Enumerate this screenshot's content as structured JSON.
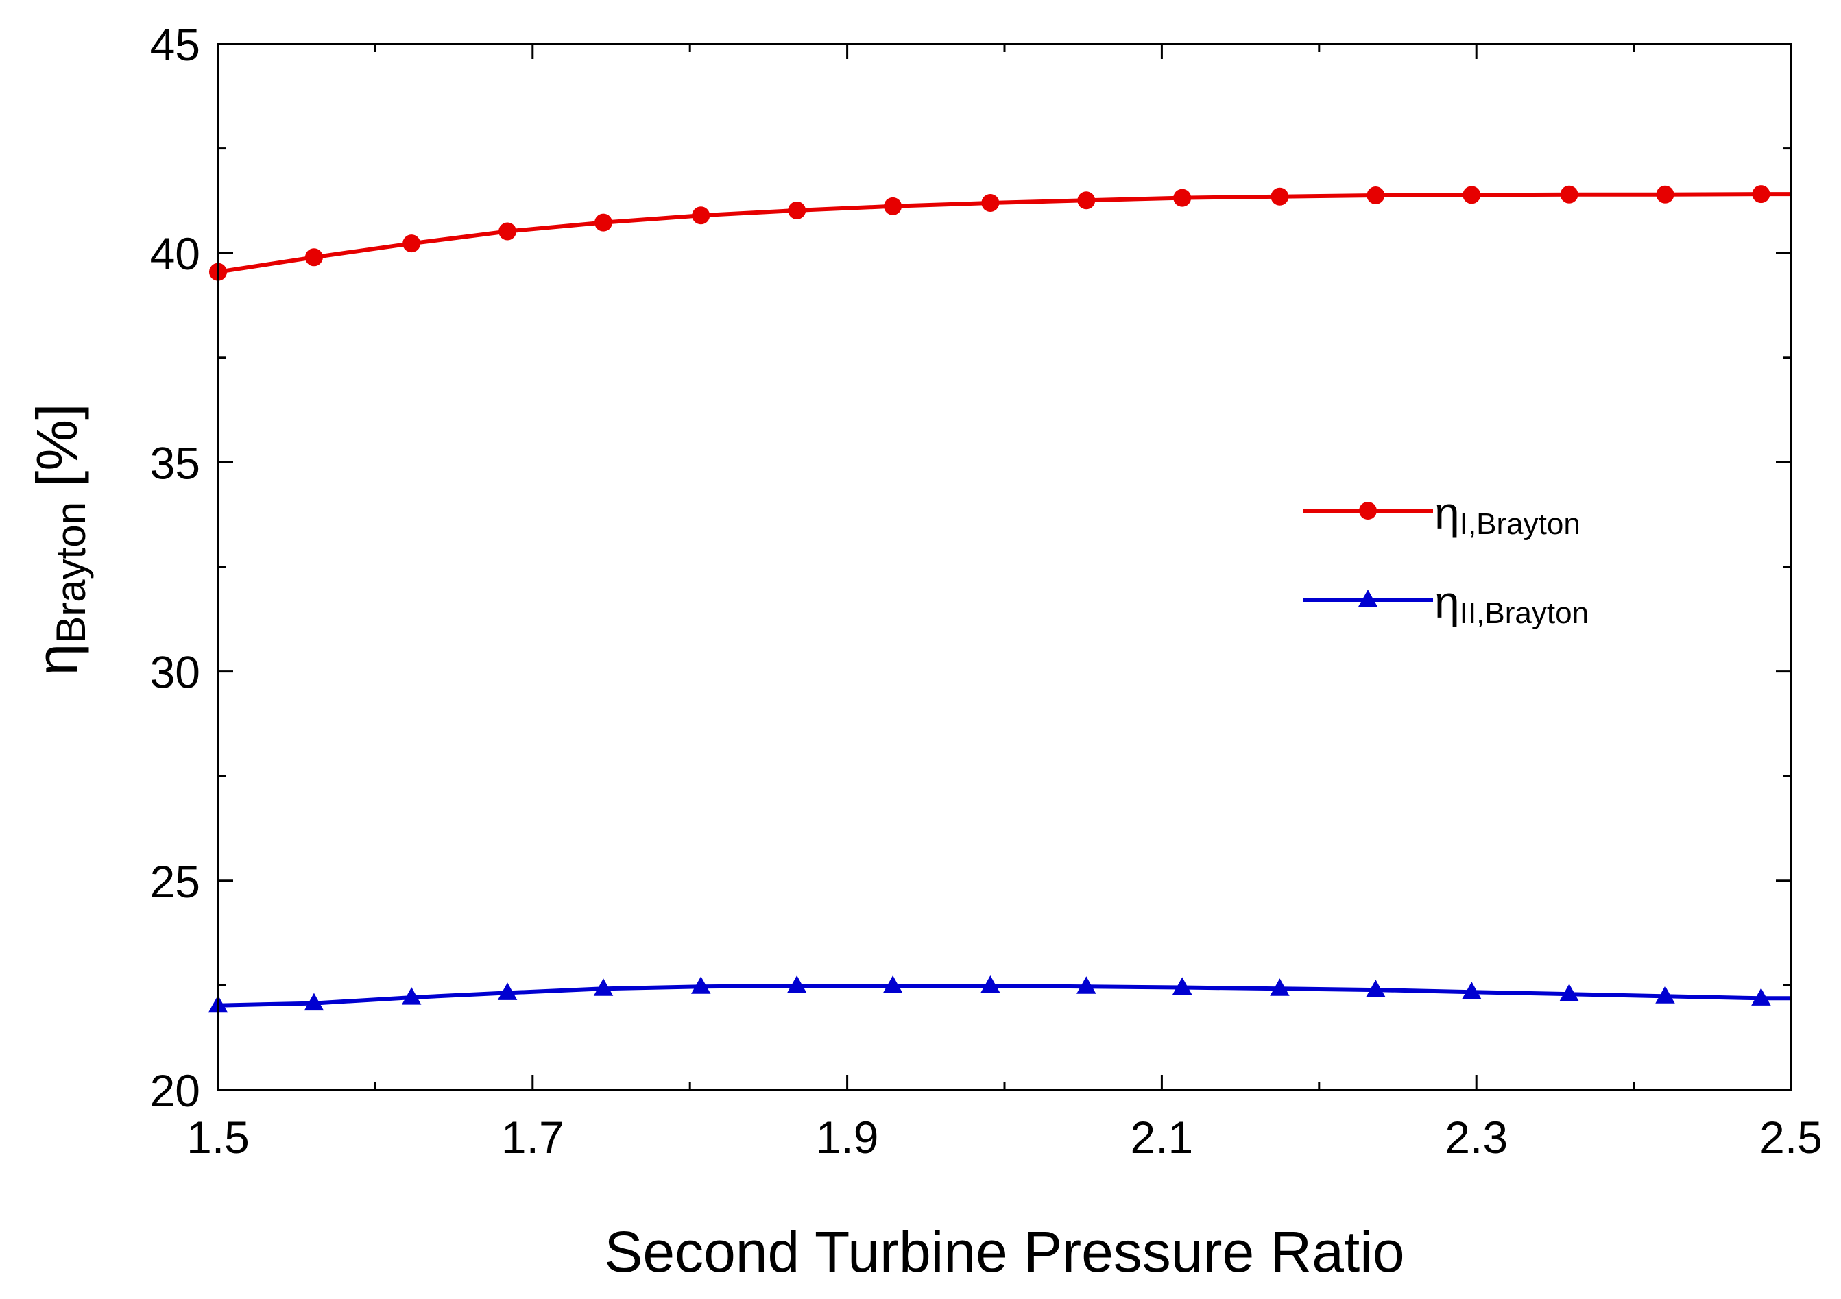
{
  "chart_data": {
    "type": "line",
    "title": "",
    "xlabel": "Second Turbine Pressure Ratio",
    "ylabel": {
      "symbol": "η",
      "subscript": "Brayton",
      "unit": "[%]"
    },
    "xlim": [
      1.5,
      2.5
    ],
    "ylim": [
      20,
      45
    ],
    "xticks": [
      1.5,
      1.7,
      1.9,
      2.1,
      2.3,
      2.5
    ],
    "xtick_labels": [
      "1.5",
      "1.7",
      "1.9",
      "2.1",
      "2.3",
      "2.5"
    ],
    "yticks": [
      20,
      25,
      30,
      35,
      40,
      45
    ],
    "ytick_labels": [
      "20",
      "25",
      "30",
      "35",
      "40",
      "45"
    ],
    "grid": false,
    "legend_position": "right-middle",
    "x": [
      1.5,
      1.561,
      1.623,
      1.684,
      1.745,
      1.807,
      1.868,
      1.929,
      1.991,
      2.052,
      2.113,
      2.175,
      2.236,
      2.297,
      2.359,
      2.42,
      2.481
    ],
    "series": [
      {
        "name": "ηI,Brayton",
        "legend_symbol": "η",
        "legend_subscript": "I,Brayton",
        "color": "#e60000",
        "marker": "circle",
        "values": [
          39.55,
          39.9,
          40.23,
          40.52,
          40.73,
          40.9,
          41.02,
          41.12,
          41.2,
          41.26,
          41.32,
          41.35,
          41.38,
          41.39,
          41.4,
          41.4,
          41.41
        ]
      },
      {
        "name": "ηII,Brayton",
        "legend_symbol": "η",
        "legend_subscript": "II,Brayton",
        "color": "#0000d0",
        "marker": "triangle",
        "values": [
          22.02,
          22.07,
          22.21,
          22.32,
          22.42,
          22.47,
          22.49,
          22.49,
          22.49,
          22.47,
          22.45,
          22.42,
          22.39,
          22.34,
          22.29,
          22.24,
          22.19
        ]
      }
    ]
  }
}
